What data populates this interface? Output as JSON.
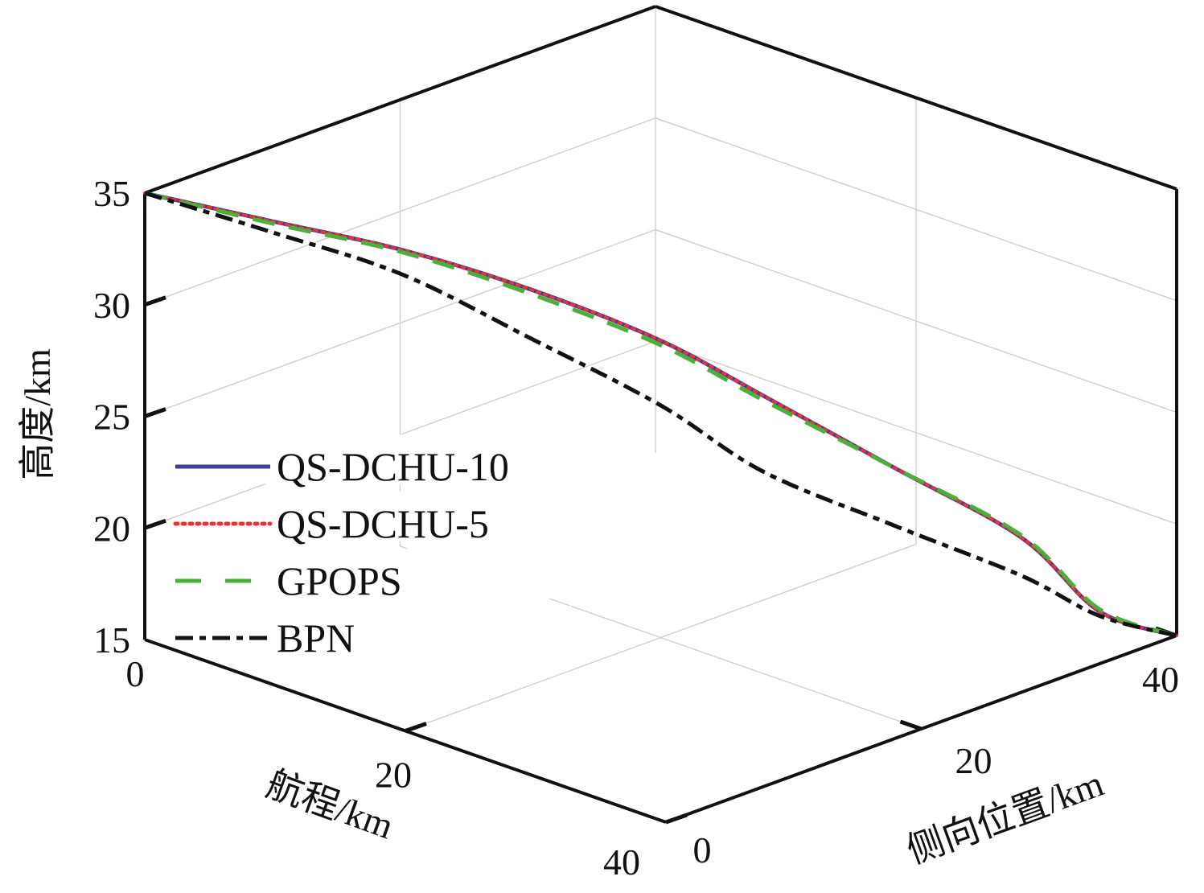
{
  "chart_data": {
    "type": "line",
    "projection": "3d",
    "title": "",
    "xlabel": "航程/km",
    "ylabel": "侧向位置/km",
    "zlabel": "高度/km",
    "xlim": [
      0,
      40
    ],
    "ylim": [
      0,
      40
    ],
    "zlim": [
      15,
      35
    ],
    "xticks": [
      0,
      20,
      40
    ],
    "yticks": [
      0,
      20,
      40
    ],
    "zticks": [
      15,
      20,
      25,
      30,
      35
    ],
    "grid": true,
    "legend_position": "left-center",
    "series": [
      {
        "name": "QS-DCHU-10",
        "color": "#3b3f96",
        "style": "solid",
        "x": [
          0,
          5,
          10,
          15,
          20,
          24,
          29,
          34,
          37,
          40
        ],
        "y": [
          0,
          5,
          10,
          15,
          20,
          24,
          29,
          34,
          37,
          40
        ],
        "z": [
          35,
          33.7,
          32.4,
          30.6,
          28.3,
          25.8,
          22.6,
          19.4,
          16.1,
          15
        ]
      },
      {
        "name": "QS-DCHU-5",
        "color": "#ee3030",
        "style": "dotted",
        "x": [
          0,
          5,
          10,
          15,
          20,
          24,
          29,
          34,
          37,
          40
        ],
        "y": [
          0,
          5,
          10,
          15,
          20,
          24,
          29,
          34,
          37,
          40
        ],
        "z": [
          35,
          33.7,
          32.4,
          30.6,
          28.3,
          25.8,
          22.6,
          19.4,
          16.1,
          15
        ]
      },
      {
        "name": "GPOPS",
        "color": "#4caf3a",
        "style": "dashed",
        "x": [
          0,
          5,
          10,
          15,
          20,
          24,
          29,
          34,
          37,
          40
        ],
        "y": [
          0,
          5,
          10,
          15,
          20,
          24,
          29,
          34,
          37,
          40
        ],
        "z": [
          35,
          33.6,
          32.3,
          30.4,
          28.1,
          25.6,
          22.6,
          19.5,
          16.2,
          15
        ]
      },
      {
        "name": "BPN",
        "color": "#111111",
        "style": "dashdot",
        "x": [
          0,
          5,
          10,
          15,
          20,
          24,
          29,
          34,
          37,
          40
        ],
        "y": [
          0,
          5,
          10,
          15,
          20,
          24,
          29,
          34,
          37,
          40
        ],
        "z": [
          35,
          33.2,
          31.3,
          28.4,
          25.4,
          22.4,
          20.0,
          17.7,
          15.9,
          15
        ]
      }
    ]
  }
}
